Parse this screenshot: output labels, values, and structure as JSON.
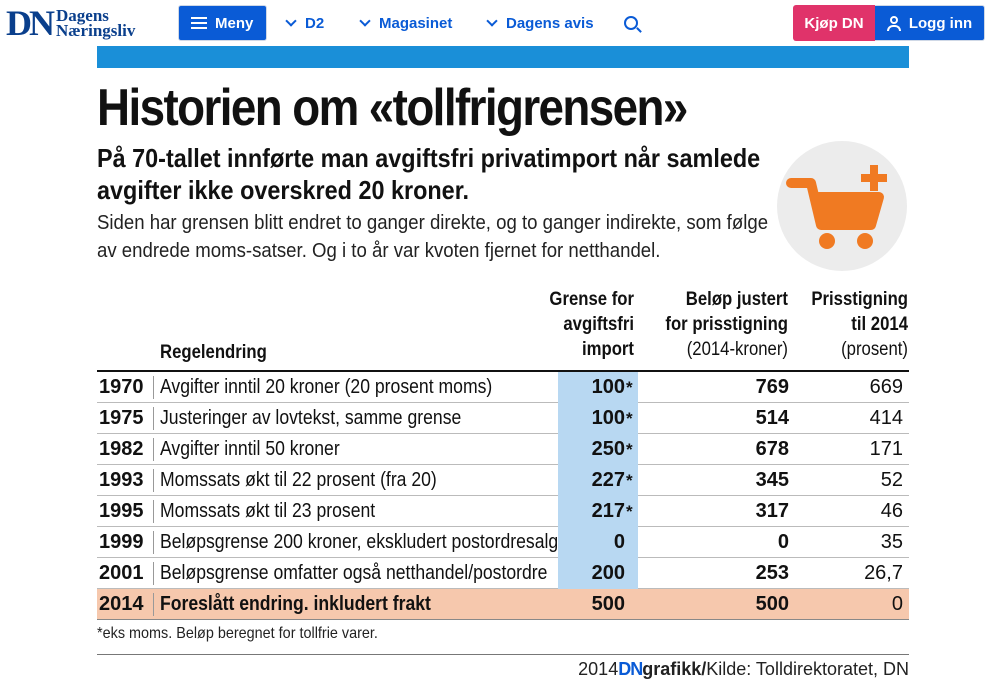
{
  "nav": {
    "logo_mark": "DN",
    "logo_line1": "Dagens",
    "logo_line2": "Næringsliv",
    "menu_label": "Meny",
    "links": [
      "D2",
      "Magasinet",
      "Dagens avis"
    ],
    "buy_label": "Kjøp DN",
    "login_label": "Logg inn"
  },
  "graphic": {
    "title": "Historien om «tollfrigrensen»",
    "subtitle": "På 70-tallet innførte man avgiftsfri privatimport når samlede avgifter ikke overskred 20 kroner.",
    "intro": "Siden har grensen blitt endret to ganger direkte, og to ganger indirekte, som følge av endrede moms-satser. Og i to år var kvoten fjernet for netthandel.",
    "headers": {
      "rule": "Regelendring",
      "limit_1": "Grense for",
      "limit_2": "avgiftsfri",
      "limit_3": "import",
      "adjusted_1": "Beløp justert",
      "adjusted_2": "for prisstigning",
      "adjusted_3": "(2014-kroner)",
      "increase_1": "Prisstigning",
      "increase_2": "til 2014",
      "increase_3": "(prosent)"
    },
    "rows": [
      {
        "year": "1970",
        "rule": "Avgifter inntil 20 kroner (20 prosent moms)",
        "limit": "100",
        "star": "*",
        "adjusted": "769",
        "increase": "669"
      },
      {
        "year": "1975",
        "rule": "Justeringer av lovtekst, samme grense",
        "limit": "100",
        "star": "*",
        "adjusted": "514",
        "increase": "414"
      },
      {
        "year": "1982",
        "rule": "Avgifter inntil 50 kroner",
        "limit": "250",
        "star": "*",
        "adjusted": "678",
        "increase": "171"
      },
      {
        "year": "1993",
        "rule": "Momssats økt til 22 prosent (fra 20)",
        "limit": "227",
        "star": "*",
        "adjusted": "345",
        "increase": "52"
      },
      {
        "year": "1995",
        "rule": "Momssats økt til 23 prosent",
        "limit": "217",
        "star": "*",
        "adjusted": "317",
        "increase": "46"
      },
      {
        "year": "1999",
        "rule": "Beløpsgrense 200 kroner, ekskludert postordresalg",
        "limit": "0",
        "star": "",
        "adjusted": "0",
        "increase": "35"
      },
      {
        "year": "2001",
        "rule": "Beløpsgrense omfatter også netthandel/postordre",
        "limit": "200",
        "star": "",
        "adjusted": "253",
        "increase": "26,7"
      },
      {
        "year": "2014",
        "rule": "Foreslått endring. inkludert frakt",
        "limit": "500",
        "star": "",
        "adjusted": "500",
        "increase": "0"
      }
    ],
    "footnote": "*eks moms. Beløp beregnet for tollfrie varer.",
    "credit_year": "2014",
    "credit_dn": "DN",
    "credit_grafikk": "grafikk/",
    "credit_source": "Kilde: Tolldirektoratet, DN"
  },
  "colors": {
    "brand_blue": "#0a5bd6",
    "buy_pink": "#e0336a",
    "strip_blue": "#1a8fd8",
    "limit_column": "#b8d8f2",
    "proposed_row": "#f6c8ad",
    "cart_orange": "#f07a22"
  },
  "icons": {
    "menu": "hamburger-icon",
    "search": "search-icon",
    "user": "user-icon",
    "cart": "cart-plus-icon"
  }
}
